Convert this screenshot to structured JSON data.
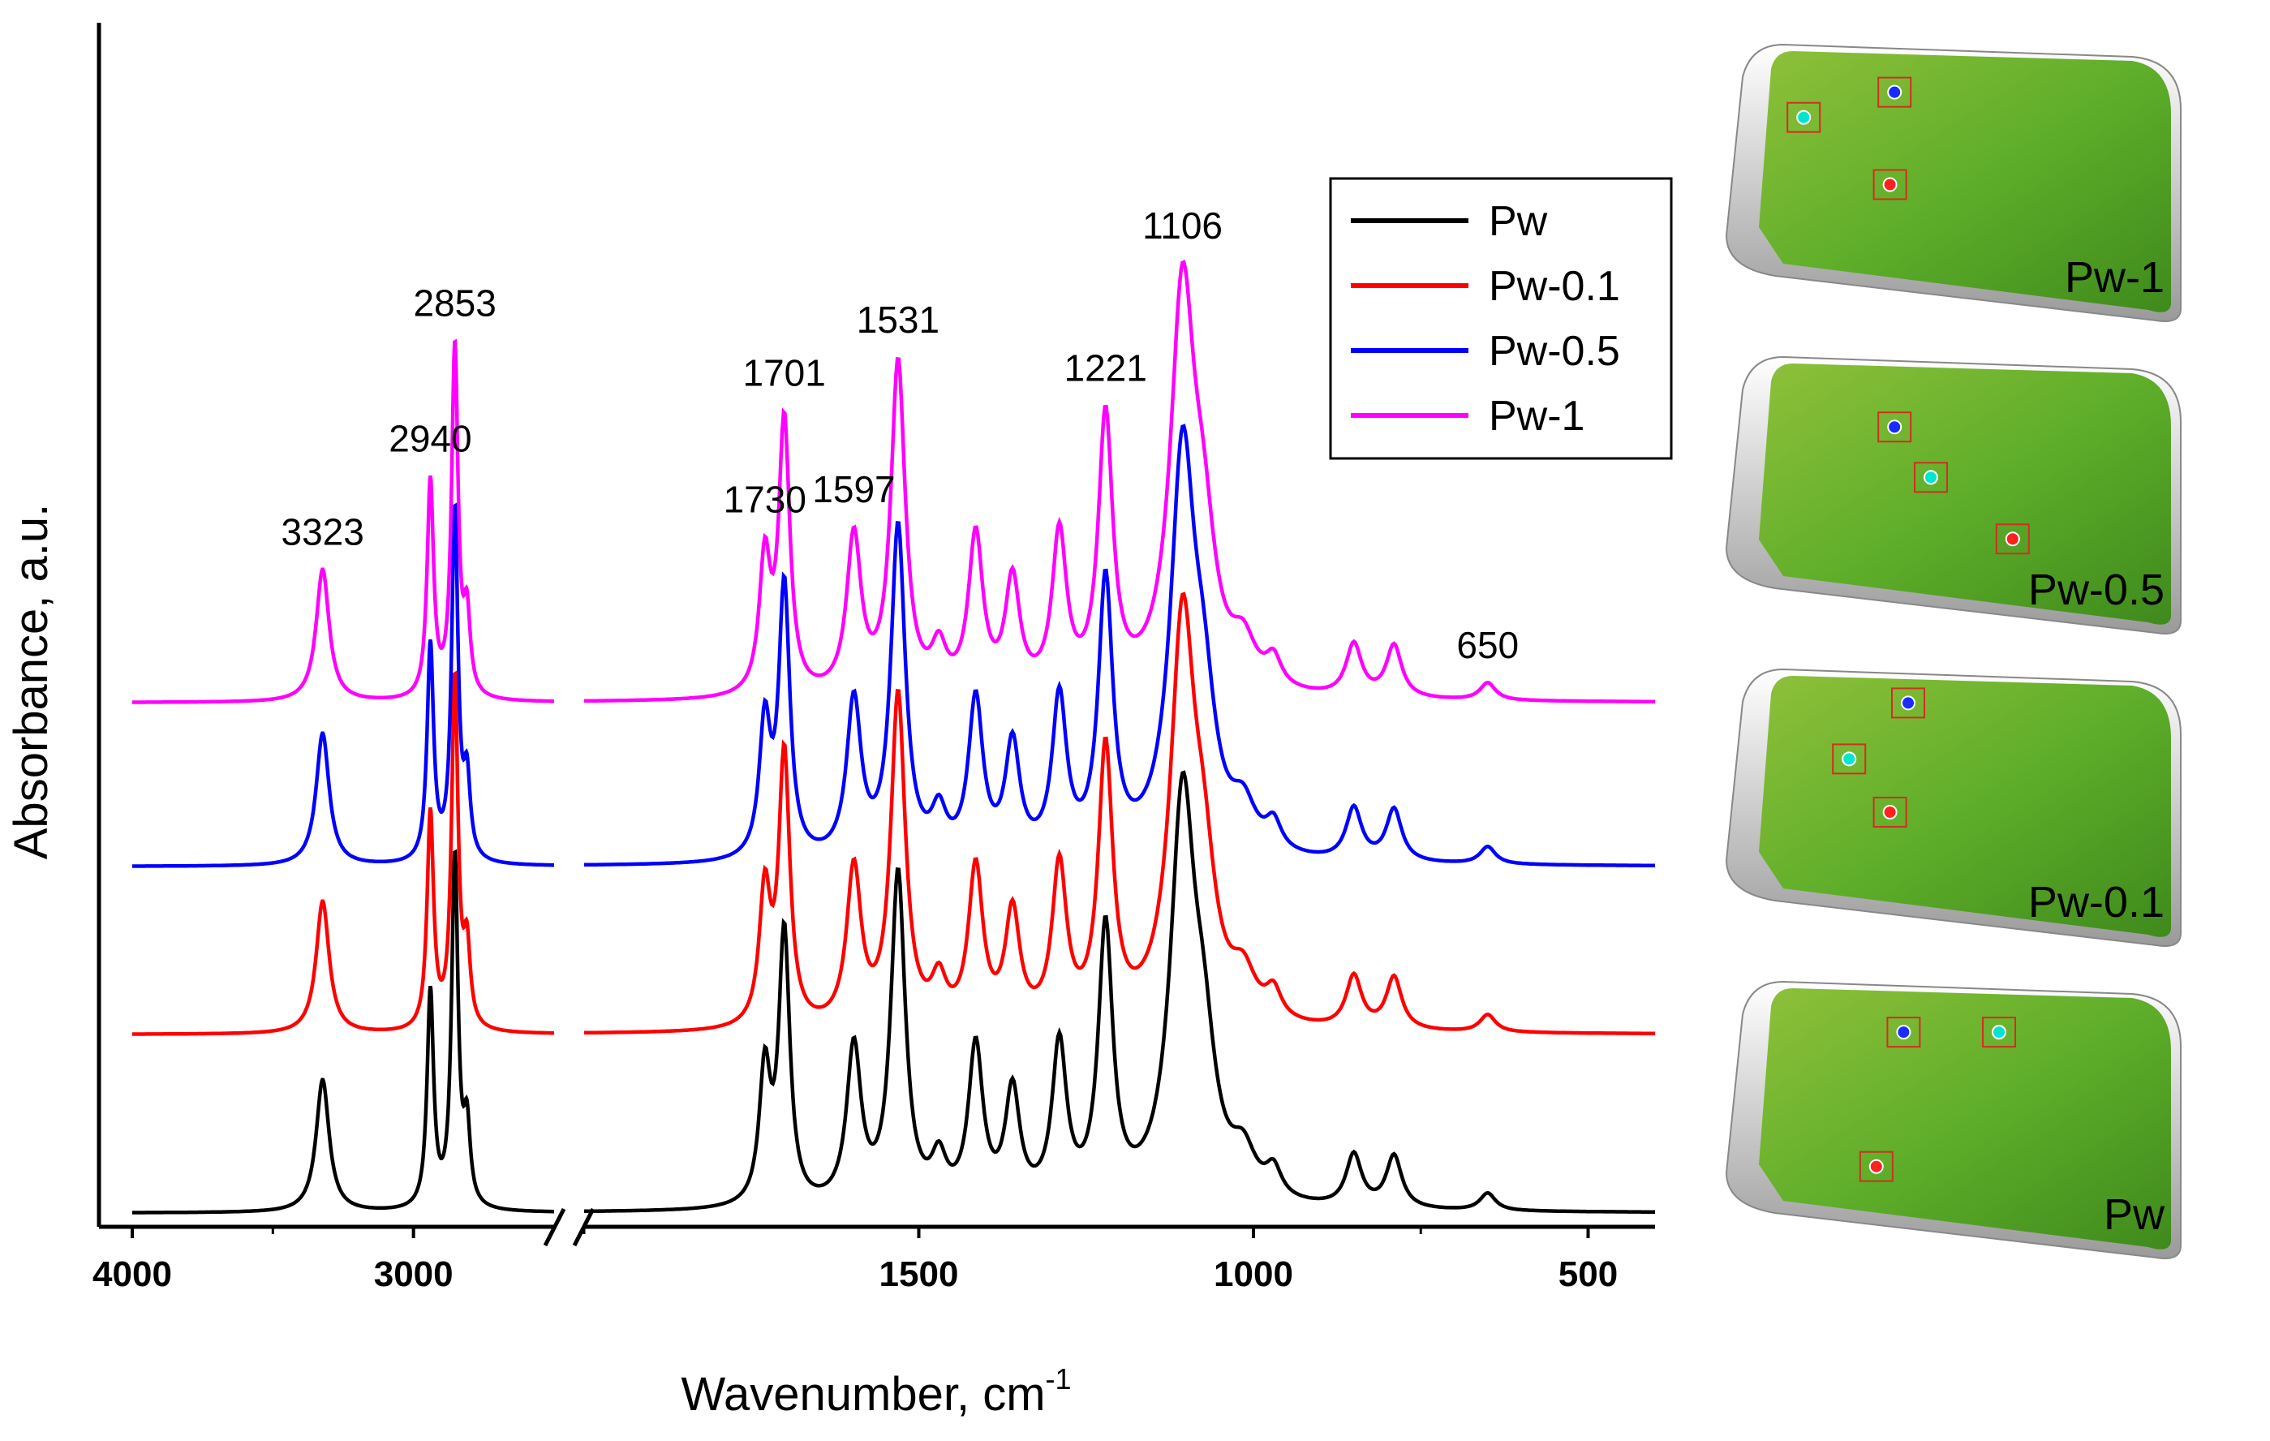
{
  "chart_data": {
    "type": "line",
    "title": "",
    "xlabel": "Wavenumber, cm",
    "xlabel_superscript": "-1",
    "ylabel": "Absorbance, a.u.",
    "x_reversed": true,
    "x_break": true,
    "xticks": [
      "4000",
      "3000",
      "1500",
      "1000",
      "500"
    ],
    "xlim_left": [
      4000,
      2500
    ],
    "xlim_right": [
      2000,
      400
    ],
    "legend_position": "top-right",
    "series": [
      {
        "name": "Pw",
        "color": "#000000",
        "offset": 0
      },
      {
        "name": "Pw-0.1",
        "color": "#ff0000",
        "offset": 1
      },
      {
        "name": "Pw-0.5",
        "color": "#0000ff",
        "offset": 2
      },
      {
        "name": "Pw-1",
        "color": "#ff00ff",
        "offset": 3
      }
    ],
    "peaks": [
      {
        "x": 3323,
        "label": "3323",
        "height": 0.38
      },
      {
        "x": 2940,
        "label": "2940",
        "height": 0.62
      },
      {
        "x": 2853,
        "label": "2853",
        "height": 1.0
      },
      {
        "x": 2810,
        "label": "",
        "height": 0.22
      },
      {
        "x": 1730,
        "label": "1730",
        "height": 0.38
      },
      {
        "x": 1701,
        "label": "1701",
        "height": 0.78
      },
      {
        "x": 1597,
        "label": "1597",
        "height": 0.45
      },
      {
        "x": 1531,
        "label": "1531",
        "height": 0.95
      },
      {
        "x": 1470,
        "label": "",
        "height": 0.12
      },
      {
        "x": 1415,
        "label": "",
        "height": 0.45
      },
      {
        "x": 1360,
        "label": "",
        "height": 0.32
      },
      {
        "x": 1290,
        "label": "",
        "height": 0.45
      },
      {
        "x": 1221,
        "label": "1221",
        "height": 0.78
      },
      {
        "x": 1106,
        "label": "1106",
        "height": 1.12
      },
      {
        "x": 1075,
        "label": "",
        "height": 0.35
      },
      {
        "x": 1015,
        "label": "",
        "height": 0.12
      },
      {
        "x": 970,
        "label": "",
        "height": 0.08
      },
      {
        "x": 850,
        "label": "",
        "height": 0.15
      },
      {
        "x": 790,
        "label": "",
        "height": 0.15
      },
      {
        "x": 650,
        "label": "650",
        "height": 0.05
      }
    ],
    "annotation_series": "Pw-1"
  },
  "maps": [
    {
      "label": "Pw-1",
      "spots": [
        [
          "#00e5d0",
          0.17,
          0.26
        ],
        [
          "#1a2bff",
          0.37,
          0.17
        ],
        [
          "#ff2020",
          0.36,
          0.5
        ]
      ]
    },
    {
      "label": "Pw-0.5",
      "spots": [
        [
          "#1a2bff",
          0.37,
          0.25
        ],
        [
          "#00e5d0",
          0.45,
          0.43
        ],
        [
          "#ff2020",
          0.63,
          0.65
        ]
      ]
    },
    {
      "label": "Pw-0.1",
      "spots": [
        [
          "#1a2bff",
          0.4,
          0.12
        ],
        [
          "#00e5d0",
          0.27,
          0.32
        ],
        [
          "#ff2020",
          0.36,
          0.51
        ]
      ]
    },
    {
      "label": "Pw",
      "spots": [
        [
          "#1a2bff",
          0.39,
          0.18
        ],
        [
          "#00e5d0",
          0.6,
          0.18
        ],
        [
          "#ff2020",
          0.33,
          0.66
        ]
      ]
    }
  ]
}
